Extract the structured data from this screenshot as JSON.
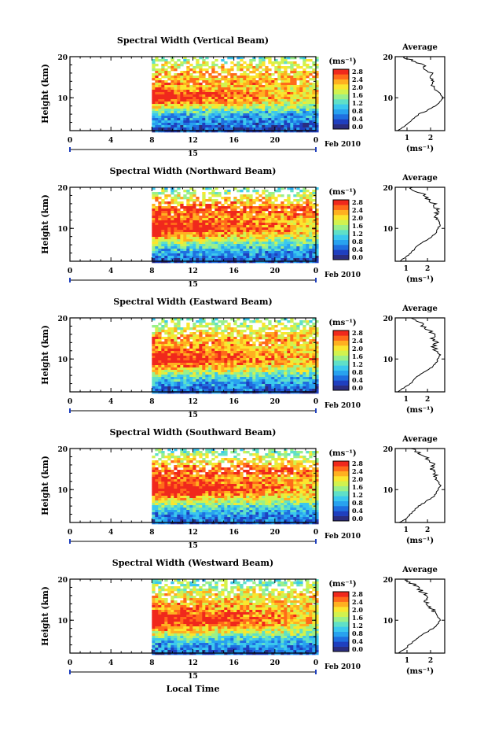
{
  "figure": {
    "colorbar_unit": "(ms⁻¹)",
    "colorbar_ticks": [
      "2.8",
      "2.4",
      "2.0",
      "1.6",
      "1.2",
      "0.8",
      "0.4",
      "0.0"
    ],
    "colorbar_colors": [
      "#2b2d7f",
      "#1f3fbf",
      "#1f6fe0",
      "#28a2ef",
      "#3bc8ee",
      "#5fe0c8",
      "#9af08a",
      "#d2f24e",
      "#fbe62e",
      "#ffb020",
      "#ff6a1a",
      "#f0281c"
    ],
    "date_label": "Feb 2010",
    "day_label": "15",
    "average_title": "Average",
    "average_xlabel": "(ms⁻¹)",
    "ylabel": "Height (km)",
    "xlabel": "Local Time"
  },
  "chart_data": [
    {
      "type": "heatmap",
      "title": "Spectral Width (Vertical Beam)",
      "xlabel": "",
      "ylabel": "Height (km)",
      "x_ticks": [
        "0",
        "4",
        "8",
        "12",
        "16",
        "20",
        "0"
      ],
      "y_ticks": [
        "20",
        "10"
      ],
      "xlim": [
        0,
        24
      ],
      "ylim": [
        2,
        20
      ],
      "data_start_hour": 8,
      "colorbar": {
        "label": "(ms⁻¹)",
        "range": [
          0.0,
          2.8
        ],
        "ticks": [
          2.8,
          2.4,
          2.0,
          1.6,
          1.2,
          0.8,
          0.4,
          0.0
        ]
      },
      "height_profile": [
        [
          2,
          0.3
        ],
        [
          3,
          0.5
        ],
        [
          4,
          0.7
        ],
        [
          5,
          0.8
        ],
        [
          6,
          1.0
        ],
        [
          7,
          1.4
        ],
        [
          8,
          1.9
        ],
        [
          9,
          2.2
        ],
        [
          10,
          2.4
        ],
        [
          11,
          2.5
        ],
        [
          12,
          2.4
        ],
        [
          13,
          2.2
        ],
        [
          14,
          2.3
        ],
        [
          15,
          2.1
        ],
        [
          16,
          2.2
        ],
        [
          17,
          2.0
        ],
        [
          18,
          1.9
        ],
        [
          19,
          1.7
        ],
        [
          20,
          1.3
        ]
      ],
      "average": {
        "title": "Average",
        "xlabel": "(ms⁻¹)",
        "x_ticks": [
          "1",
          "2"
        ],
        "y_ticks": [
          "20",
          "10"
        ],
        "xlim": [
          0.5,
          2.6
        ],
        "ylim": [
          2,
          20
        ],
        "profile": [
          [
            2,
            0.6
          ],
          [
            3,
            0.9
          ],
          [
            4,
            1.1
          ],
          [
            5,
            1.3
          ],
          [
            6,
            1.5
          ],
          [
            7,
            1.9
          ],
          [
            8,
            2.2
          ],
          [
            9,
            2.4
          ],
          [
            10,
            2.5
          ],
          [
            11,
            2.4
          ],
          [
            12,
            2.2
          ],
          [
            13,
            2.0
          ],
          [
            14,
            2.1
          ],
          [
            15,
            1.9
          ],
          [
            16,
            2.0
          ],
          [
            17,
            1.8
          ],
          [
            18,
            1.7
          ],
          [
            19,
            1.3
          ],
          [
            20,
            0.8
          ]
        ]
      }
    },
    {
      "type": "heatmap",
      "title": "Spectral Width (Northward Beam)",
      "xlabel": "",
      "ylabel": "Height (km)",
      "x_ticks": [
        "0",
        "4",
        "8",
        "12",
        "16",
        "20",
        "0"
      ],
      "y_ticks": [
        "20",
        "10"
      ],
      "xlim": [
        0,
        24
      ],
      "ylim": [
        2,
        20
      ],
      "data_start_hour": 8,
      "colorbar": {
        "label": "(ms⁻¹)",
        "range": [
          0.0,
          2.8
        ],
        "ticks": [
          2.8,
          2.4,
          2.0,
          1.6,
          1.2,
          0.8,
          0.4,
          0.0
        ]
      },
      "height_profile": [
        [
          2,
          0.4
        ],
        [
          3,
          0.6
        ],
        [
          4,
          0.8
        ],
        [
          5,
          1.0
        ],
        [
          6,
          1.3
        ],
        [
          7,
          1.7
        ],
        [
          8,
          2.1
        ],
        [
          9,
          2.4
        ],
        [
          10,
          2.6
        ],
        [
          11,
          2.6
        ],
        [
          12,
          2.5
        ],
        [
          13,
          2.4
        ],
        [
          14,
          2.5
        ],
        [
          15,
          2.6
        ],
        [
          16,
          2.3
        ],
        [
          17,
          2.1
        ],
        [
          18,
          1.9
        ],
        [
          19,
          1.6
        ],
        [
          20,
          1.3
        ]
      ],
      "average": {
        "title": "Average",
        "xlabel": "(ms⁻¹)",
        "x_ticks": [
          "1",
          "2"
        ],
        "y_ticks": [
          "20",
          "10"
        ],
        "xlim": [
          0.5,
          2.8
        ],
        "ylim": [
          2,
          20
        ],
        "profile": [
          [
            2,
            0.7
          ],
          [
            3,
            1.0
          ],
          [
            4,
            1.2
          ],
          [
            5,
            1.4
          ],
          [
            6,
            1.6
          ],
          [
            7,
            1.9
          ],
          [
            8,
            2.2
          ],
          [
            9,
            2.4
          ],
          [
            10,
            2.5
          ],
          [
            11,
            2.6
          ],
          [
            12,
            2.5
          ],
          [
            13,
            2.3
          ],
          [
            14,
            2.5
          ],
          [
            15,
            2.4
          ],
          [
            16,
            2.3
          ],
          [
            17,
            2.0
          ],
          [
            18,
            1.9
          ],
          [
            19,
            1.5
          ],
          [
            20,
            1.2
          ]
        ]
      }
    },
    {
      "type": "heatmap",
      "title": "Spectral Width (Eastward Beam)",
      "xlabel": "",
      "ylabel": "Height (km)",
      "x_ticks": [
        "0",
        "4",
        "8",
        "12",
        "16",
        "20",
        "0"
      ],
      "y_ticks": [
        "20",
        "10"
      ],
      "xlim": [
        0,
        24
      ],
      "ylim": [
        2,
        20
      ],
      "data_start_hour": 8,
      "colorbar": {
        "label": "(ms⁻¹)",
        "range": [
          0.0,
          2.8
        ],
        "ticks": [
          2.8,
          2.4,
          2.0,
          1.6,
          1.2,
          0.8,
          0.4,
          0.0
        ]
      },
      "height_profile": [
        [
          2,
          0.4
        ],
        [
          3,
          0.6
        ],
        [
          4,
          0.8
        ],
        [
          5,
          1.0
        ],
        [
          6,
          1.3
        ],
        [
          7,
          1.8
        ],
        [
          8,
          2.1
        ],
        [
          9,
          2.4
        ],
        [
          10,
          2.6
        ],
        [
          11,
          2.6
        ],
        [
          12,
          2.4
        ],
        [
          13,
          2.3
        ],
        [
          14,
          2.2
        ],
        [
          15,
          2.3
        ],
        [
          16,
          2.1
        ],
        [
          17,
          1.9
        ],
        [
          18,
          1.8
        ],
        [
          19,
          1.6
        ],
        [
          20,
          1.4
        ]
      ],
      "average": {
        "title": "Average",
        "xlabel": "(ms⁻¹)",
        "x_ticks": [
          "1",
          "2"
        ],
        "y_ticks": [
          "20",
          "10"
        ],
        "xlim": [
          0.5,
          2.8
        ],
        "ylim": [
          2,
          20
        ],
        "profile": [
          [
            2,
            0.6
          ],
          [
            3,
            0.9
          ],
          [
            4,
            1.2
          ],
          [
            5,
            1.4
          ],
          [
            6,
            1.6
          ],
          [
            7,
            1.9
          ],
          [
            8,
            2.2
          ],
          [
            9,
            2.4
          ],
          [
            10,
            2.5
          ],
          [
            11,
            2.6
          ],
          [
            12,
            2.4
          ],
          [
            13,
            2.3
          ],
          [
            14,
            2.4
          ],
          [
            15,
            2.2
          ],
          [
            16,
            2.4
          ],
          [
            17,
            2.0
          ],
          [
            18,
            1.8
          ],
          [
            19,
            1.6
          ],
          [
            20,
            1.3
          ]
        ]
      }
    },
    {
      "type": "heatmap",
      "title": "Spectral Width (Southward Beam)",
      "xlabel": "",
      "ylabel": "Height (km)",
      "x_ticks": [
        "0",
        "4",
        "8",
        "12",
        "16",
        "20",
        "0"
      ],
      "y_ticks": [
        "20",
        "10"
      ],
      "xlim": [
        0,
        24
      ],
      "ylim": [
        2,
        20
      ],
      "data_start_hour": 8,
      "colorbar": {
        "label": "(ms⁻¹)",
        "range": [
          0.0,
          2.8
        ],
        "ticks": [
          2.8,
          2.4,
          2.0,
          1.6,
          1.2,
          0.8,
          0.4,
          0.0
        ]
      },
      "height_profile": [
        [
          2,
          0.4
        ],
        [
          3,
          0.6
        ],
        [
          4,
          0.8
        ],
        [
          5,
          1.0
        ],
        [
          6,
          1.3
        ],
        [
          7,
          1.8
        ],
        [
          8,
          2.1
        ],
        [
          9,
          2.4
        ],
        [
          10,
          2.6
        ],
        [
          11,
          2.6
        ],
        [
          12,
          2.5
        ],
        [
          13,
          2.4
        ],
        [
          14,
          2.5
        ],
        [
          15,
          2.6
        ],
        [
          16,
          2.3
        ],
        [
          17,
          2.0
        ],
        [
          18,
          1.8
        ],
        [
          19,
          1.6
        ],
        [
          20,
          1.3
        ]
      ],
      "average": {
        "title": "Average",
        "xlabel": "(ms⁻¹)",
        "x_ticks": [
          "1",
          "2"
        ],
        "y_ticks": [
          "20",
          "10"
        ],
        "xlim": [
          0.5,
          2.8
        ],
        "ylim": [
          2,
          20
        ],
        "profile": [
          [
            2,
            0.7
          ],
          [
            3,
            1.0
          ],
          [
            4,
            1.2
          ],
          [
            5,
            1.4
          ],
          [
            6,
            1.6
          ],
          [
            7,
            1.9
          ],
          [
            8,
            2.2
          ],
          [
            9,
            2.4
          ],
          [
            10,
            2.5
          ],
          [
            11,
            2.6
          ],
          [
            12,
            2.5
          ],
          [
            13,
            2.3
          ],
          [
            14,
            2.4
          ],
          [
            15,
            2.2
          ],
          [
            16,
            2.3
          ],
          [
            17,
            2.0
          ],
          [
            18,
            1.9
          ],
          [
            19,
            1.6
          ],
          [
            20,
            1.3
          ]
        ]
      }
    },
    {
      "type": "heatmap",
      "title": "Spectral Width (Westward Beam)",
      "xlabel": "Local Time",
      "ylabel": "Height (km)",
      "x_ticks": [
        "0",
        "4",
        "8",
        "12",
        "16",
        "20",
        "0"
      ],
      "y_ticks": [
        "20",
        "10"
      ],
      "xlim": [
        0,
        24
      ],
      "ylim": [
        2,
        20
      ],
      "data_start_hour": 8,
      "colorbar": {
        "label": "(ms⁻¹)",
        "range": [
          0.0,
          2.8
        ],
        "ticks": [
          2.8,
          2.4,
          2.0,
          1.6,
          1.2,
          0.8,
          0.4,
          0.0
        ]
      },
      "height_profile": [
        [
          2,
          0.4
        ],
        [
          3,
          0.6
        ],
        [
          4,
          0.8
        ],
        [
          5,
          1.0
        ],
        [
          6,
          1.3
        ],
        [
          7,
          1.8
        ],
        [
          8,
          2.1
        ],
        [
          9,
          2.4
        ],
        [
          10,
          2.6
        ],
        [
          11,
          2.6
        ],
        [
          12,
          2.4
        ],
        [
          13,
          2.3
        ],
        [
          14,
          2.2
        ],
        [
          15,
          2.1
        ],
        [
          16,
          2.0
        ],
        [
          17,
          1.9
        ],
        [
          18,
          1.7
        ],
        [
          19,
          1.5
        ],
        [
          20,
          1.3
        ]
      ],
      "average": {
        "title": "Average",
        "xlabel": "(ms⁻¹)",
        "x_ticks": [
          "1",
          "2"
        ],
        "y_ticks": [
          "20",
          "10"
        ],
        "xlim": [
          0.5,
          2.6
        ],
        "ylim": [
          2,
          20
        ],
        "profile": [
          [
            2,
            0.6
          ],
          [
            3,
            0.9
          ],
          [
            4,
            1.1
          ],
          [
            5,
            1.3
          ],
          [
            6,
            1.5
          ],
          [
            7,
            1.8
          ],
          [
            8,
            2.1
          ],
          [
            9,
            2.3
          ],
          [
            10,
            2.4
          ],
          [
            11,
            2.3
          ],
          [
            12,
            2.2
          ],
          [
            13,
            2.0
          ],
          [
            14,
            1.9
          ],
          [
            15,
            1.8
          ],
          [
            16,
            1.9
          ],
          [
            17,
            1.6
          ],
          [
            18,
            1.5
          ],
          [
            19,
            1.2
          ],
          [
            20,
            0.9
          ]
        ]
      }
    }
  ]
}
